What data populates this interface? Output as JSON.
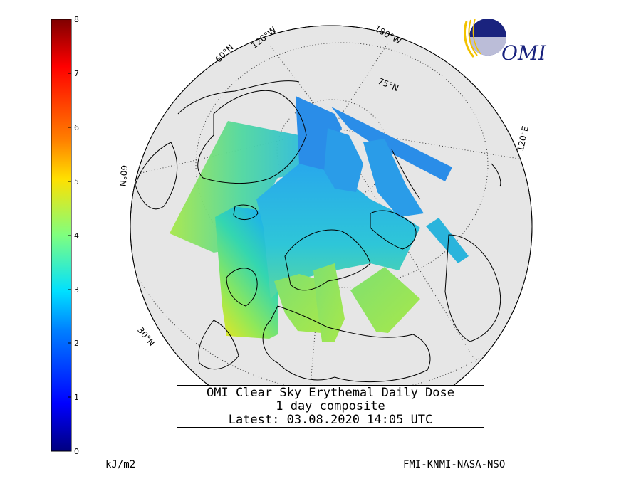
{
  "title": {
    "line1": "OMI Clear Sky Erythemal Daily Dose",
    "line2": "1 day composite",
    "line3": "Latest: 03.08.2020 14:05 UTC"
  },
  "colorbar": {
    "ticks": [
      "8",
      "7",
      "6",
      "5",
      "4",
      "3",
      "2",
      "1",
      "0"
    ],
    "unit": "kJ/m2",
    "min": 0,
    "max": 8
  },
  "credit": "FMI-KNMI-NASA-NSO",
  "logo": {
    "text": "OMI"
  },
  "map_labels": {
    "lon_120w": "120°W",
    "lon_180w": "180°W",
    "lon_120e": "120°E",
    "lat_60n_top": "60°N",
    "lat_75n": "75°N",
    "lat_60n_left": "60°N",
    "lat_30n": "30°N"
  },
  "colors": {
    "globe_fill": "#e6e6e6",
    "coast": "#000000",
    "grid": "#333333",
    "logo_blue": "#1a237e",
    "logo_gold": "#f2c200"
  }
}
